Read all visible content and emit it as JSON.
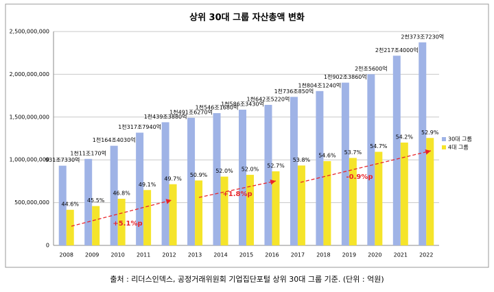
{
  "chart_data": {
    "type": "bar",
    "title": "상위 30대 그룹 자산총액 변화",
    "categories": [
      "2008",
      "2009",
      "2010",
      "2011",
      "2012",
      "2013",
      "2014",
      "2015",
      "2016",
      "2017",
      "2018",
      "2019",
      "2020",
      "2021",
      "2022"
    ],
    "series": [
      {
        "name": "30대 그룹",
        "color": "#9fb3e6",
        "values": [
          931733000,
          1011017000,
          1164403000,
          1317794000,
          1439388000,
          1491627000,
          1546168000,
          1586343000,
          1642522000,
          1736085000,
          1804124000,
          1902386000,
          2000560000,
          2217400000,
          2373723000
        ],
        "value_labels": [
          "931조7330억",
          "1천11조170억",
          "1천164조4030억",
          "1천317조7940억",
          "1천439조3880억",
          "1천491조6270억",
          "1천546조1680억",
          "1천586조3430억",
          "1천642조5220억",
          "1천736조850억",
          "1천804조1240억",
          "1천902조3860억",
          "2천조5600억",
          "2천217조4000억",
          "2천373조7230억"
        ]
      },
      {
        "name": "4대 그룹",
        "color": "#f5e42a",
        "values": [
          416000000,
          460000000,
          545000000,
          647000000,
          715000000,
          759000000,
          804000000,
          825000000,
          866000000,
          934000000,
          985000000,
          1022000000,
          1094000000,
          1202000000,
          1256000000
        ],
        "share_labels": [
          "44.6%",
          "45.5%",
          "46.8%",
          "49.1%",
          "49.7%",
          "50.9%",
          "52.0%",
          "52.0%",
          "52.7%",
          "53.8%",
          "54.6%",
          "53.7%",
          "54.7%",
          "54.2%",
          "52.9%"
        ]
      }
    ],
    "ylim": [
      0,
      2500000000
    ],
    "yticks": [
      {
        "value": 0,
        "label": "0"
      },
      {
        "value": 500000000,
        "label": "500,000,000"
      },
      {
        "value": 1000000000,
        "label": "1,000,000,000"
      },
      {
        "value": 1500000000,
        "label": "1,500,000,000"
      },
      {
        "value": 2000000000,
        "label": "2,000,000,000"
      },
      {
        "value": 2500000000,
        "label": "2,500,000,000"
      }
    ],
    "grid": true,
    "trend_annotations": [
      "+5.1%p",
      "+1.8%p",
      "-0.9%p"
    ],
    "source": "출처 : 리더스인덱스, 공정거래위원회 기업집단포털 상위 30대 그룹 기준. (단위 : 억원)"
  }
}
